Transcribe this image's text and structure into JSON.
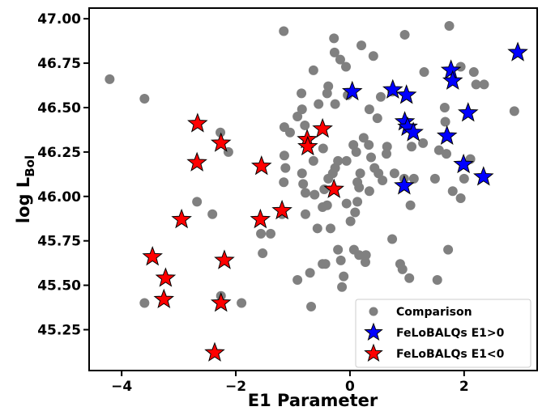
{
  "chart_data": {
    "type": "scatter",
    "xlabel": "E1 Parameter",
    "ylabel": "log L",
    "ylabel_sub": "Bol",
    "xlim": [
      -4.57,
      3.28
    ],
    "ylim": [
      45.02,
      47.06
    ],
    "xticks": [
      {
        "value": -4,
        "label": "−4"
      },
      {
        "value": -2,
        "label": "−2"
      },
      0,
      2
    ],
    "yticks": [
      {
        "value": 45.25,
        "label": "45.25"
      },
      {
        "value": 45.5,
        "label": "45.50"
      },
      {
        "value": 45.75,
        "label": "45.75"
      },
      {
        "value": 46,
        "label": "46.00"
      },
      {
        "value": 46.25,
        "label": "46.25"
      },
      {
        "value": 46.5,
        "label": "46.50"
      },
      {
        "value": 46.75,
        "label": "46.75"
      },
      {
        "value": 47,
        "label": "47.00"
      }
    ],
    "legend": "lower right",
    "series": [
      {
        "name": "Comparison",
        "color": "#808080",
        "marker": "circle",
        "x": [
          -4.21,
          -3.6,
          -1.16,
          -0.28,
          -0.27,
          -0.17,
          -0.07,
          -0.64,
          0.2,
          0.41,
          0.96,
          1.74,
          1.3,
          2.17,
          1.94,
          2.35,
          2.21,
          2.88,
          -0.38,
          -0.4,
          -0.26,
          -0.55,
          -0.85,
          -0.84,
          -0.92,
          -0.79,
          -1.15,
          -1.05,
          -0.04,
          0.34,
          0.54,
          0.48,
          0.74,
          1.66,
          1.67,
          1.28,
          1.08,
          0.65,
          0.64,
          0.24,
          0.33,
          0.06,
          0.11,
          0.37,
          0.43,
          0.5,
          0.18,
          -0.06,
          -0.21,
          -0.26,
          -0.3,
          -0.38,
          -0.47,
          -0.64,
          -0.62,
          -0.45,
          -0.4,
          -0.48,
          -0.82,
          -0.84,
          -1.13,
          -1.16,
          -1.15,
          0.13,
          0.16,
          0.34,
          0.57,
          0.78,
          0.95,
          1.12,
          1.06,
          0.74,
          1.49,
          1.8,
          1.94,
          1.56,
          1.69,
          2.11,
          2.0,
          0.01,
          0.09,
          0.13,
          -0.06,
          -0.21,
          0.07,
          0.16,
          0.28,
          0.27,
          -0.16,
          -0.11,
          -0.48,
          -0.43,
          -0.7,
          -0.68,
          -0.92,
          -0.78,
          -0.78,
          -0.34,
          -0.57,
          -0.14,
          0.88,
          0.92,
          1.04,
          1.53,
          1.72,
          -1.56,
          -1.39,
          -1.53,
          -2.68,
          -2.41,
          -2.27,
          -2.13,
          -2.26,
          -1.9,
          -3.6,
          -1.19
        ],
        "values": [
          46.66,
          46.55,
          46.93,
          46.89,
          46.81,
          46.77,
          46.73,
          46.71,
          46.85,
          46.79,
          46.91,
          46.96,
          46.7,
          46.7,
          46.73,
          46.63,
          46.63,
          46.48,
          46.62,
          46.58,
          46.52,
          46.52,
          46.58,
          46.49,
          46.45,
          46.4,
          46.39,
          46.36,
          46.57,
          46.49,
          46.56,
          46.44,
          46.59,
          46.5,
          46.42,
          46.3,
          46.28,
          46.28,
          46.24,
          46.33,
          46.29,
          46.29,
          46.25,
          46.22,
          46.16,
          46.13,
          46.13,
          46.2,
          46.2,
          46.16,
          46.13,
          46.1,
          46.27,
          46.2,
          46.01,
          46.04,
          45.95,
          45.94,
          46.07,
          46.13,
          46.16,
          46.08,
          46.23,
          46.08,
          46.05,
          46.03,
          46.09,
          46.13,
          46.1,
          46.1,
          45.95,
          45.76,
          46.1,
          46.03,
          45.99,
          46.26,
          46.24,
          46.21,
          46.1,
          45.86,
          45.91,
          45.97,
          45.96,
          45.7,
          45.7,
          45.67,
          45.67,
          45.63,
          45.64,
          45.55,
          45.62,
          45.62,
          45.57,
          45.38,
          45.53,
          45.9,
          46.02,
          45.82,
          45.82,
          45.49,
          45.62,
          45.59,
          45.54,
          45.53,
          45.7,
          45.79,
          45.79,
          45.68,
          45.97,
          45.9,
          46.36,
          46.25,
          45.44,
          45.4,
          45.4,
          45.9
        ]
      },
      {
        "name": "FeLoBALQs E1>0",
        "color": "#0000ff",
        "marker": "star",
        "x": [
          2.94,
          1.77,
          1.8,
          0.04,
          0.75,
          0.99,
          0.96,
          1.01,
          1.11,
          2.07,
          1.7,
          1.99,
          2.34,
          0.95
        ],
        "values": [
          46.81,
          46.71,
          46.65,
          46.59,
          46.6,
          46.57,
          46.42,
          46.39,
          46.36,
          46.47,
          46.34,
          46.18,
          46.11,
          46.06
        ]
      },
      {
        "name": "FeLoBALQs E1<0",
        "color": "#ff0000",
        "marker": "star",
        "x": [
          -2.67,
          -2.26,
          -2.68,
          -2.95,
          -1.55,
          -1.57,
          -1.19,
          -0.48,
          -0.75,
          -0.74,
          -0.28,
          -3.46,
          -3.23,
          -3.26,
          -2.2,
          -2.26,
          -2.37
        ],
        "values": [
          46.41,
          46.3,
          46.19,
          45.87,
          46.17,
          45.87,
          45.92,
          46.38,
          46.32,
          46.28,
          46.04,
          45.66,
          45.54,
          45.42,
          45.64,
          45.4,
          45.12
        ]
      }
    ]
  }
}
